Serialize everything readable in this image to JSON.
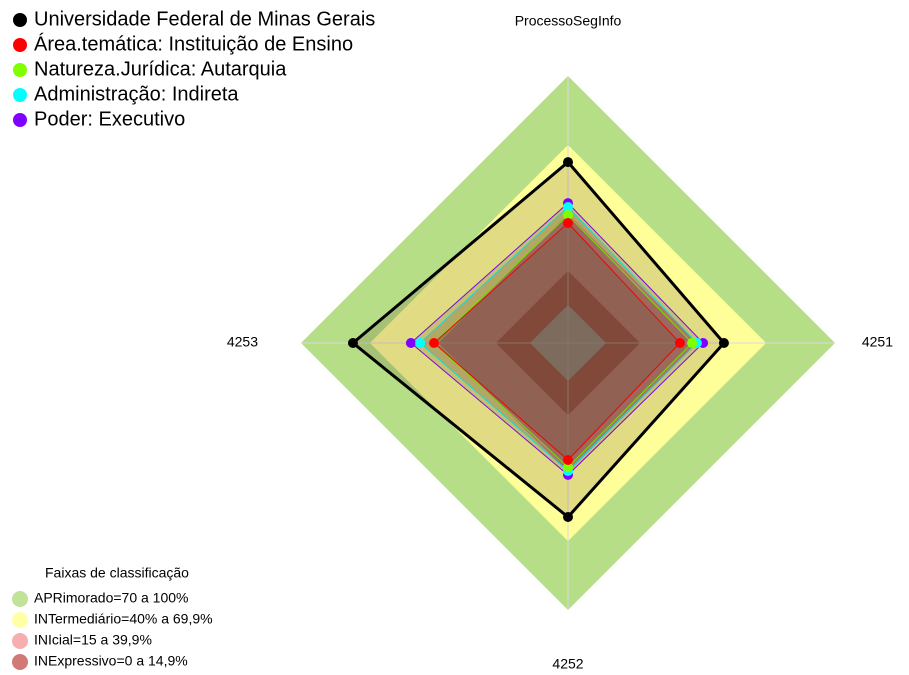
{
  "chart_data": {
    "type": "radar",
    "axes": [
      "ProcessoSegInfo",
      "4251",
      "4252",
      "4253"
    ],
    "rlim": [
      0,
      100
    ],
    "series": [
      {
        "name": "Universidade Federal de Minas Gerais",
        "color": "#000000",
        "values": [
          62.4,
          51.5,
          59.4,
          77.3
        ]
      },
      {
        "name": "Área.temática: Instituição de Ensino",
        "color": "#ff0000",
        "values": [
          35.8,
          32.3,
          34.5,
          41.9
        ]
      },
      {
        "name": "Natureza.Jurídica: Autarquia",
        "color": "#7fff00",
        "values": [
          39.3,
          37.6,
          37.6,
          41.9
        ]
      },
      {
        "name": "Administração: Indireta",
        "color": "#00ffff",
        "values": [
          42.8,
          39.7,
          39.3,
          48
        ]
      },
      {
        "name": "Poder: Executivo",
        "color": "#8000ff",
        "values": [
          44.5,
          42.4,
          41,
          52
        ]
      }
    ],
    "bands_title": "Faixas de classificação",
    "bands": [
      {
        "label": "APRimorado=70 a 100%",
        "from": 70,
        "to": 100,
        "color": "#b5de87"
      },
      {
        "label": "INTermediário=40% a 69,9%",
        "from": 40,
        "to": 69.9,
        "color": "#ffff99"
      },
      {
        "label": "INIcial=15 a 39,9%",
        "from": 15,
        "to": 39.9,
        "color": "#f4a0a0"
      },
      {
        "label": "INExpressivo=0 a 14,9%",
        "from": 0,
        "to": 14.9,
        "color": "#c9625c"
      }
    ]
  }
}
